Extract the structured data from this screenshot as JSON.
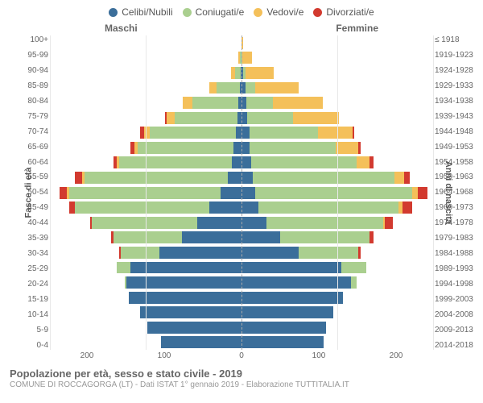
{
  "legend": [
    {
      "label": "Celibi/Nubili",
      "color": "#3b6e9a"
    },
    {
      "label": "Coniugati/e",
      "color": "#aacf8f"
    },
    {
      "label": "Vedovi/e",
      "color": "#f4c05a"
    },
    {
      "label": "Divorziati/e",
      "color": "#d23a2f"
    }
  ],
  "side_labels": {
    "left": "Maschi",
    "right": "Femmine"
  },
  "axis_titles": {
    "left": "Fasce di età",
    "right": "Anni di nascita"
  },
  "x_ticks": [
    200,
    100,
    0,
    100,
    200
  ],
  "x_max": 200,
  "colors": {
    "celibi": "#3b6e9a",
    "coniugati": "#aacf8f",
    "vedovi": "#f4c05a",
    "divorziati": "#d23a2f",
    "grid": "#e8e8e8",
    "center": "#aaaaaa",
    "bg": "#ffffff"
  },
  "age_bands": [
    {
      "label": "100+",
      "birth": "≤ 1918",
      "m": {
        "c": 0,
        "co": 0,
        "v": 0,
        "d": 0
      },
      "f": {
        "c": 0,
        "co": 0,
        "v": 2,
        "d": 0
      }
    },
    {
      "label": "95-99",
      "birth": "1919-1923",
      "m": {
        "c": 0,
        "co": 2,
        "v": 1,
        "d": 0
      },
      "f": {
        "c": 0,
        "co": 1,
        "v": 10,
        "d": 0
      }
    },
    {
      "label": "90-94",
      "birth": "1924-1928",
      "m": {
        "c": 1,
        "co": 6,
        "v": 4,
        "d": 0
      },
      "f": {
        "c": 2,
        "co": 2,
        "v": 30,
        "d": 0
      }
    },
    {
      "label": "85-89",
      "birth": "1929-1933",
      "m": {
        "c": 2,
        "co": 24,
        "v": 8,
        "d": 0
      },
      "f": {
        "c": 4,
        "co": 10,
        "v": 46,
        "d": 0
      }
    },
    {
      "label": "80-84",
      "birth": "1934-1938",
      "m": {
        "c": 3,
        "co": 48,
        "v": 10,
        "d": 0
      },
      "f": {
        "c": 5,
        "co": 28,
        "v": 52,
        "d": 0
      }
    },
    {
      "label": "75-79",
      "birth": "1939-1943",
      "m": {
        "c": 4,
        "co": 66,
        "v": 8,
        "d": 2
      },
      "f": {
        "c": 6,
        "co": 48,
        "v": 48,
        "d": 0
      }
    },
    {
      "label": "70-74",
      "birth": "1944-1948",
      "m": {
        "c": 6,
        "co": 90,
        "v": 6,
        "d": 4
      },
      "f": {
        "c": 8,
        "co": 72,
        "v": 36,
        "d": 2
      }
    },
    {
      "label": "65-69",
      "birth": "1949-1953",
      "m": {
        "c": 8,
        "co": 100,
        "v": 4,
        "d": 4
      },
      "f": {
        "c": 8,
        "co": 90,
        "v": 24,
        "d": 2
      }
    },
    {
      "label": "60-64",
      "birth": "1954-1958",
      "m": {
        "c": 10,
        "co": 118,
        "v": 2,
        "d": 4
      },
      "f": {
        "c": 10,
        "co": 110,
        "v": 14,
        "d": 4
      }
    },
    {
      "label": "55-59",
      "birth": "1959-1963",
      "m": {
        "c": 14,
        "co": 150,
        "v": 2,
        "d": 8
      },
      "f": {
        "c": 12,
        "co": 148,
        "v": 10,
        "d": 6
      }
    },
    {
      "label": "50-54",
      "birth": "1964-1968",
      "m": {
        "c": 22,
        "co": 158,
        "v": 2,
        "d": 8
      },
      "f": {
        "c": 14,
        "co": 164,
        "v": 6,
        "d": 10
      }
    },
    {
      "label": "45-49",
      "birth": "1969-1973",
      "m": {
        "c": 34,
        "co": 140,
        "v": 0,
        "d": 6
      },
      "f": {
        "c": 18,
        "co": 146,
        "v": 4,
        "d": 10
      }
    },
    {
      "label": "40-44",
      "birth": "1974-1978",
      "m": {
        "c": 46,
        "co": 110,
        "v": 0,
        "d": 2
      },
      "f": {
        "c": 26,
        "co": 122,
        "v": 2,
        "d": 8
      }
    },
    {
      "label": "35-39",
      "birth": "1979-1983",
      "m": {
        "c": 62,
        "co": 72,
        "v": 0,
        "d": 2
      },
      "f": {
        "c": 40,
        "co": 94,
        "v": 0,
        "d": 4
      }
    },
    {
      "label": "30-34",
      "birth": "1984-1988",
      "m": {
        "c": 86,
        "co": 40,
        "v": 0,
        "d": 2
      },
      "f": {
        "c": 60,
        "co": 62,
        "v": 0,
        "d": 2
      }
    },
    {
      "label": "25-29",
      "birth": "1989-1993",
      "m": {
        "c": 116,
        "co": 14,
        "v": 0,
        "d": 0
      },
      "f": {
        "c": 104,
        "co": 26,
        "v": 0,
        "d": 0
      }
    },
    {
      "label": "20-24",
      "birth": "1994-1998",
      "m": {
        "c": 120,
        "co": 2,
        "v": 0,
        "d": 0
      },
      "f": {
        "c": 114,
        "co": 6,
        "v": 0,
        "d": 0
      }
    },
    {
      "label": "15-19",
      "birth": "1999-2003",
      "m": {
        "c": 118,
        "co": 0,
        "v": 0,
        "d": 0
      },
      "f": {
        "c": 106,
        "co": 0,
        "v": 0,
        "d": 0
      }
    },
    {
      "label": "10-14",
      "birth": "2004-2008",
      "m": {
        "c": 106,
        "co": 0,
        "v": 0,
        "d": 0
      },
      "f": {
        "c": 96,
        "co": 0,
        "v": 0,
        "d": 0
      }
    },
    {
      "label": "5-9",
      "birth": "2009-2013",
      "m": {
        "c": 98,
        "co": 0,
        "v": 0,
        "d": 0
      },
      "f": {
        "c": 88,
        "co": 0,
        "v": 0,
        "d": 0
      }
    },
    {
      "label": "0-4",
      "birth": "2014-2018",
      "m": {
        "c": 84,
        "co": 0,
        "v": 0,
        "d": 0
      },
      "f": {
        "c": 86,
        "co": 0,
        "v": 0,
        "d": 0
      }
    }
  ],
  "footer": {
    "title": "Popolazione per età, sesso e stato civile - 2019",
    "subtitle": "COMUNE DI ROCCAGORGA (LT) - Dati ISTAT 1° gennaio 2019 - Elaborazione TUTTITALIA.IT"
  }
}
